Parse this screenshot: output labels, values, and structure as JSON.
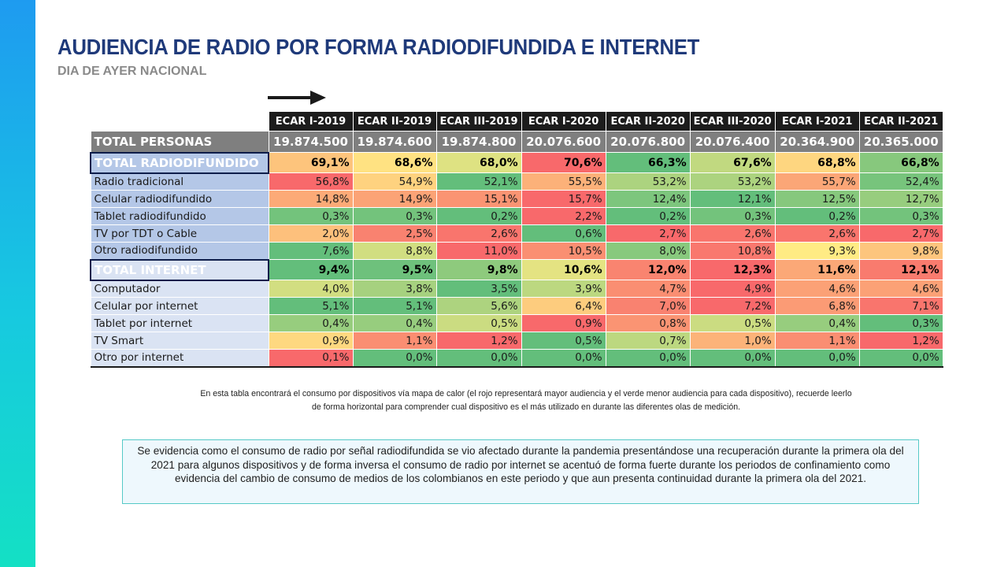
{
  "title": "AUDIENCIA DE RADIO POR FORMA RADIODIFUNDIDA E INTERNET",
  "subtitle": "DIA DE AYER NACIONAL",
  "colors": {
    "brand_navy": "#1f3a7a",
    "heat_red": "#f8696b",
    "heat_yellow": "#ffeb84",
    "heat_green": "#63be7b",
    "sidebar_top": "#1e9bf0",
    "sidebar_bottom": "#14e0c4"
  },
  "table": {
    "columns": [
      "ECAR I-2019",
      "ECAR II-2019",
      "ECAR III-2019",
      "ECAR I-2020",
      "ECAR II-2020",
      "ECAR III-2020",
      "ECAR I-2021",
      "ECAR II-2021"
    ],
    "total_personas": {
      "label": "TOTAL PERSONAS",
      "values": [
        "19.874.500",
        "19.874.600",
        "19.874.800",
        "20.076.600",
        "20.076.800",
        "20.076.400",
        "20.364.900",
        "20.365.000"
      ]
    },
    "groups": [
      {
        "kind": "radio",
        "total": {
          "label": "TOTAL RADIODIFUNDIDO",
          "values": [
            "69,1%",
            "68,6%",
            "68,0%",
            "70,6%",
            "66,3%",
            "67,6%",
            "68,8%",
            "66,8%"
          ]
        },
        "rows": [
          {
            "label": "Radio tradicional",
            "values": [
              "56,8%",
              "54,9%",
              "52,1%",
              "55,5%",
              "53,2%",
              "53,2%",
              "55,7%",
              "52,4%"
            ]
          },
          {
            "label": "Celular radiodifundido",
            "values": [
              "14,8%",
              "14,9%",
              "15,1%",
              "15,7%",
              "12,4%",
              "12,1%",
              "12,5%",
              "12,7%"
            ]
          },
          {
            "label": "Tablet radiodifundido",
            "values": [
              "0,3%",
              "0,3%",
              "0,2%",
              "2,2%",
              "0,2%",
              "0,3%",
              "0,2%",
              "0,3%"
            ]
          },
          {
            "label": "TV por TDT o Cable",
            "values": [
              "2,0%",
              "2,5%",
              "2,6%",
              "0,6%",
              "2,7%",
              "2,6%",
              "2,6%",
              "2,7%"
            ]
          },
          {
            "label": "Otro radiodifundido",
            "values": [
              "7,6%",
              "8,8%",
              "11,0%",
              "10,5%",
              "8,0%",
              "10,8%",
              "9,3%",
              "9,8%"
            ]
          }
        ]
      },
      {
        "kind": "inet",
        "total": {
          "label": "TOTAL INTERNET",
          "values": [
            "9,4%",
            "9,5%",
            "9,8%",
            "10,6%",
            "12,0%",
            "12,3%",
            "11,6%",
            "12,1%"
          ]
        },
        "rows": [
          {
            "label": "Computador",
            "values": [
              "4,0%",
              "3,8%",
              "3,5%",
              "3,9%",
              "4,7%",
              "4,9%",
              "4,6%",
              "4,6%"
            ]
          },
          {
            "label": "Celular por internet",
            "values": [
              "5,1%",
              "5,1%",
              "5,6%",
              "6,4%",
              "7,0%",
              "7,2%",
              "6,8%",
              "7,1%"
            ]
          },
          {
            "label": "Tablet por internet",
            "values": [
              "0,4%",
              "0,4%",
              "0,5%",
              "0,9%",
              "0,8%",
              "0,5%",
              "0,4%",
              "0,3%"
            ]
          },
          {
            "label": "TV Smart",
            "values": [
              "0,9%",
              "1,1%",
              "1,2%",
              "0,5%",
              "0,7%",
              "1,0%",
              "1,1%",
              "1,2%"
            ]
          },
          {
            "label": "Otro por internet",
            "values": [
              "0,1%",
              "0,0%",
              "0,0%",
              "0,0%",
              "0,0%",
              "0,0%",
              "0,0%",
              "0,0%"
            ]
          }
        ]
      }
    ]
  },
  "note": "En esta tabla encontrará el consumo por dispositivos vía mapa de calor (el rojo representará mayor audiencia y el verde menor audiencia para cada dispositivo), recuerde leerlo de forma horizontal para comprender cual dispositivo es el más utilizado en durante las diferentes olas de medición.",
  "conclusion": "Se evidencia como el consumo de radio por señal radiodifundida se vio afectado durante la pandemia presentándose una recuperación durante la primera ola del 2021 para algunos dispositivos y de forma inversa el consumo de radio por internet se acentuó de forma fuerte durante los periodos de confinamiento como evidencia del cambio de consumo de medios de los colombianos en este periodo y que aun presenta continuidad durante la primera ola del 2021."
}
